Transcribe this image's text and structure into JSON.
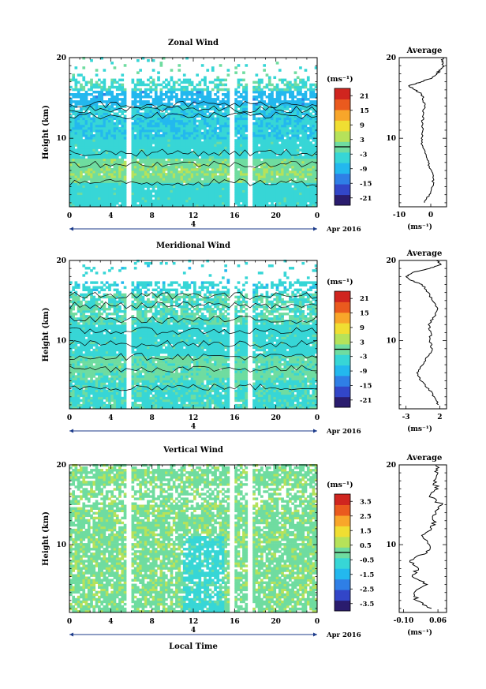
{
  "figure": {
    "xlabel": "Local Time",
    "date_label": "Apr 2016",
    "day_label": "4"
  },
  "chart_data": [
    {
      "type": "heatmap",
      "title": "Zonal Wind",
      "ylabel": "Height (km)",
      "xlabel": "Local Time",
      "xlim": [
        0,
        24
      ],
      "ylim": [
        1.5,
        20
      ],
      "xticks": [
        "0",
        "4",
        "8",
        "12",
        "16",
        "20",
        "0"
      ],
      "yticks": [
        "10",
        "20"
      ],
      "colorbar": {
        "unit": "(ms⁻¹)",
        "range": [
          -24,
          24
        ],
        "ticks": [
          "21",
          "15",
          "9",
          "3",
          "-3",
          "-9",
          "-15",
          "-21"
        ]
      },
      "data_gaps_hours": [
        5.7,
        15.8,
        17.5
      ],
      "profile": {
        "title": "Average",
        "xlabel": "(ms⁻¹)",
        "xlim": [
          -10,
          5
        ],
        "xticks": [
          "-10",
          "0"
        ],
        "heights": [
          2,
          3,
          4,
          5,
          6,
          7,
          8,
          9,
          10,
          11,
          12,
          13,
          14,
          15,
          15.5,
          16,
          16.5,
          17,
          17.5,
          18,
          18.5,
          19,
          19.5,
          20
        ],
        "values": [
          -2,
          -0.5,
          0.5,
          0.8,
          0.2,
          -0.8,
          -1.5,
          -2.5,
          -3,
          -2.5,
          -2.8,
          -2.3,
          -2,
          -2.5,
          -3,
          -5,
          -7,
          -3,
          0.5,
          2,
          3,
          4,
          3.5,
          4
        ]
      }
    },
    {
      "type": "heatmap",
      "title": "Meridional Wind",
      "ylabel": "Height (km)",
      "xlabel": "Local Time",
      "xlim": [
        0,
        24
      ],
      "ylim": [
        1.5,
        20
      ],
      "xticks": [
        "0",
        "4",
        "8",
        "12",
        "16",
        "20",
        "0"
      ],
      "yticks": [
        "10",
        "20"
      ],
      "colorbar": {
        "unit": "(ms⁻¹)",
        "range": [
          -24,
          24
        ],
        "ticks": [
          "21",
          "15",
          "9",
          "3",
          "-3",
          "-9",
          "-15",
          "-21"
        ]
      },
      "data_gaps_hours": [
        5.7,
        15.8,
        17.5
      ],
      "profile": {
        "title": "Average",
        "xlabel": "(ms⁻¹)",
        "xlim": [
          -4,
          3
        ],
        "xticks": [
          "-3",
          "2"
        ],
        "heights": [
          2,
          3,
          4,
          5,
          6,
          7,
          8,
          9,
          10,
          11,
          12,
          13,
          14,
          15,
          16,
          17,
          17.5,
          18,
          18.5,
          19,
          19.5,
          20
        ],
        "values": [
          1.8,
          1.2,
          0.4,
          -0.8,
          -1.4,
          -0.5,
          0.2,
          0.9,
          0.5,
          0.7,
          0.3,
          1.2,
          1.7,
          0.9,
          0.3,
          -0.6,
          -2.2,
          -3,
          -2,
          0.5,
          2.2,
          1.5
        ]
      }
    },
    {
      "type": "heatmap",
      "title": "Vertical Wind",
      "ylabel": "Height (km)",
      "xlabel": "Local Time",
      "xlim": [
        0,
        24
      ],
      "ylim": [
        1.5,
        20
      ],
      "xticks": [
        "0",
        "4",
        "8",
        "12",
        "16",
        "20",
        "0"
      ],
      "yticks": [
        "10",
        "20"
      ],
      "colorbar": {
        "unit": "(ms⁻¹)",
        "range": [
          -4,
          4
        ],
        "ticks": [
          "3.5",
          "2.5",
          "1.5",
          "0.5",
          "-0.5",
          "-1.5",
          "-2.5",
          "-3.5"
        ]
      },
      "data_gaps_hours": [
        5.7,
        15.8,
        17.5
      ],
      "profile": {
        "title": "Average",
        "xlabel": "(ms⁻¹)",
        "xlim": [
          -0.12,
          0.1
        ],
        "xticks": [
          "-0.10",
          "0.06"
        ],
        "heights": [
          2,
          3,
          4,
          5,
          6,
          7,
          8,
          9,
          10,
          11,
          12,
          13,
          14,
          15,
          16,
          17,
          18,
          19,
          20
        ],
        "values": [
          0.03,
          -0.04,
          -0.05,
          0.01,
          -0.06,
          -0.03,
          -0.07,
          0.01,
          0.02,
          -0.01,
          0.03,
          0.04,
          0.05,
          0.08,
          0.02,
          0.06,
          0.04,
          0.06,
          0.05
        ]
      }
    }
  ]
}
